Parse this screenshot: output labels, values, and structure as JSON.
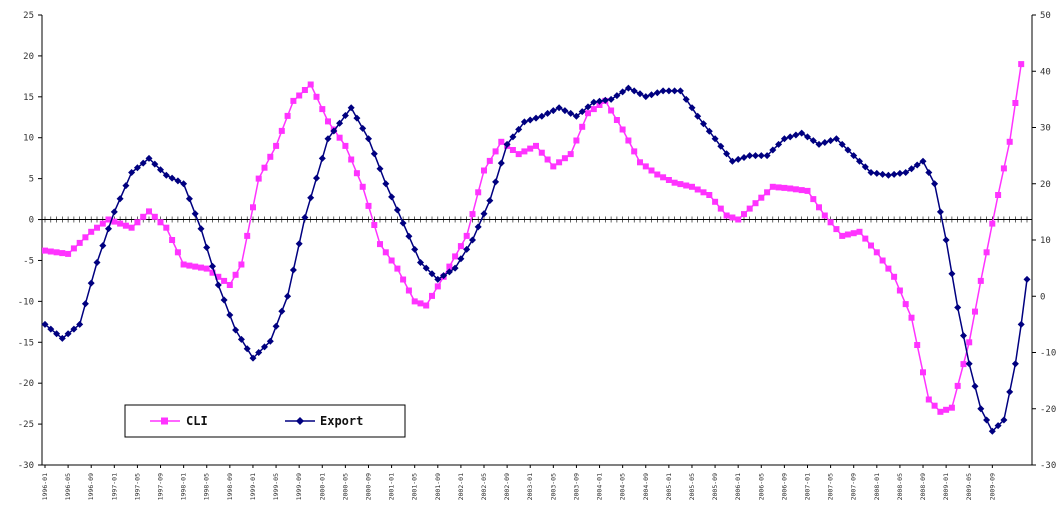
{
  "chart_data": {
    "type": "line",
    "title": "",
    "xlabel": "",
    "ylabel": "",
    "legend_position": "bottom-left",
    "grid": false,
    "zero_line": true,
    "x_tick_labels": [
      "1996-01",
      "1996-05",
      "1996-09",
      "1997-01",
      "1997-05",
      "1997-09",
      "1998-01",
      "1998-05",
      "1998-09",
      "1999-01",
      "1999-05",
      "1999-09",
      "2000-01",
      "2000-05",
      "2000-09",
      "2001-01",
      "2001-05",
      "2001-09",
      "2002-01",
      "2002-05",
      "2002-09",
      "2003-01",
      "2003-05",
      "2003-09",
      "2004-01",
      "2004-05",
      "2004-09",
      "2005-01",
      "2005-05",
      "2005-09",
      "2006-01",
      "2006-05",
      "2006-09",
      "2007-01",
      "2007-05",
      "2007-09",
      "2008-01",
      "2008-05",
      "2008-09",
      "2009-01",
      "2009-05",
      "2009-09"
    ],
    "y_left": {
      "min": -30,
      "max": 25,
      "ticks": [
        25,
        20,
        15,
        10,
        5,
        0,
        -5,
        -10,
        -15,
        -20,
        -25,
        -30
      ]
    },
    "y_right": {
      "min": -30,
      "max": 50,
      "ticks": [
        50,
        40,
        30,
        20,
        10,
        0,
        -10,
        -20,
        -30
      ]
    },
    "series": [
      {
        "name": "CLI",
        "axis": "left",
        "color": "#ff33ff",
        "marker": "square",
        "anchors": [
          [
            "1996-01",
            -3.8
          ],
          [
            "1996-05",
            -4.2
          ],
          [
            "1996-09",
            -1.5
          ],
          [
            "1996-12",
            0.0
          ],
          [
            "1997-04",
            -1.0
          ],
          [
            "1997-07",
            1.0
          ],
          [
            "1997-10",
            -1.0
          ],
          [
            "1998-01",
            -5.5
          ],
          [
            "1998-05",
            -6.0
          ],
          [
            "1998-09",
            -8.0
          ],
          [
            "1998-11",
            -5.5
          ],
          [
            "1999-02",
            5.0
          ],
          [
            "1999-05",
            9.0
          ],
          [
            "1999-08",
            14.5
          ],
          [
            "1999-11",
            16.5
          ],
          [
            "2000-02",
            12.0
          ],
          [
            "2000-05",
            9.0
          ],
          [
            "2000-08",
            4.0
          ],
          [
            "2000-11",
            -3.0
          ],
          [
            "2001-02",
            -6.0
          ],
          [
            "2001-05",
            -10.0
          ],
          [
            "2001-07",
            -10.5
          ],
          [
            "2001-10",
            -7.0
          ],
          [
            "2002-02",
            -2.0
          ],
          [
            "2002-05",
            6.0
          ],
          [
            "2002-08",
            9.5
          ],
          [
            "2002-11",
            8.0
          ],
          [
            "2003-02",
            9.0
          ],
          [
            "2003-05",
            6.5
          ],
          [
            "2003-08",
            8.0
          ],
          [
            "2003-11",
            13.0
          ],
          [
            "2004-02",
            14.5
          ],
          [
            "2004-05",
            11.0
          ],
          [
            "2004-08",
            7.0
          ],
          [
            "2004-11",
            5.5
          ],
          [
            "2005-02",
            4.5
          ],
          [
            "2005-05",
            4.0
          ],
          [
            "2005-08",
            3.0
          ],
          [
            "2005-11",
            0.5
          ],
          [
            "2006-01",
            0.0
          ],
          [
            "2006-04",
            2.0
          ],
          [
            "2006-07",
            4.0
          ],
          [
            "2006-10",
            3.8
          ],
          [
            "2007-01",
            3.5
          ],
          [
            "2007-04",
            0.5
          ],
          [
            "2007-07",
            -2.0
          ],
          [
            "2007-10",
            -1.5
          ],
          [
            "2008-01",
            -4.0
          ],
          [
            "2008-04",
            -7.0
          ],
          [
            "2008-07",
            -12.0
          ],
          [
            "2008-10",
            -22.0
          ],
          [
            "2008-12",
            -23.5
          ],
          [
            "2009-02",
            -23.0
          ],
          [
            "2009-05",
            -15.0
          ],
          [
            "2009-07",
            -7.5
          ],
          [
            "2009-10",
            3.0
          ],
          [
            "2009-12",
            9.5
          ],
          [
            "2010-02",
            19.0
          ]
        ]
      },
      {
        "name": "Export",
        "axis": "right",
        "color": "#000080",
        "marker": "diamond",
        "anchors": [
          [
            "1996-01",
            -5.0
          ],
          [
            "1996-04",
            -7.5
          ],
          [
            "1996-07",
            -5.0
          ],
          [
            "1996-10",
            6.0
          ],
          [
            "1997-01",
            15.0
          ],
          [
            "1997-04",
            22.0
          ],
          [
            "1997-07",
            24.5
          ],
          [
            "1997-10",
            21.5
          ],
          [
            "1998-01",
            20.0
          ],
          [
            "1998-04",
            12.0
          ],
          [
            "1998-07",
            2.0
          ],
          [
            "1998-10",
            -6.0
          ],
          [
            "1999-01",
            -11.0
          ],
          [
            "1999-04",
            -8.0
          ],
          [
            "1999-07",
            0.0
          ],
          [
            "1999-10",
            14.0
          ],
          [
            "2000-02",
            28.0
          ],
          [
            "2000-06",
            33.5
          ],
          [
            "2000-09",
            28.0
          ],
          [
            "2000-12",
            20.0
          ],
          [
            "2001-03",
            13.0
          ],
          [
            "2001-06",
            6.0
          ],
          [
            "2001-09",
            3.0
          ],
          [
            "2001-12",
            5.0
          ],
          [
            "2002-03",
            10.0
          ],
          [
            "2002-06",
            17.0
          ],
          [
            "2002-09",
            27.0
          ],
          [
            "2002-12",
            31.0
          ],
          [
            "2003-03",
            32.0
          ],
          [
            "2003-06",
            33.5
          ],
          [
            "2003-09",
            32.0
          ],
          [
            "2003-12",
            34.5
          ],
          [
            "2004-03",
            35.0
          ],
          [
            "2004-06",
            37.0
          ],
          [
            "2004-09",
            35.5
          ],
          [
            "2004-12",
            36.5
          ],
          [
            "2005-03",
            36.5
          ],
          [
            "2005-06",
            32.0
          ],
          [
            "2005-09",
            28.0
          ],
          [
            "2005-12",
            24.0
          ],
          [
            "2006-03",
            25.0
          ],
          [
            "2006-06",
            25.0
          ],
          [
            "2006-09",
            28.0
          ],
          [
            "2006-12",
            29.0
          ],
          [
            "2007-03",
            27.0
          ],
          [
            "2007-06",
            28.0
          ],
          [
            "2007-09",
            25.0
          ],
          [
            "2007-12",
            22.0
          ],
          [
            "2008-03",
            21.5
          ],
          [
            "2008-06",
            22.0
          ],
          [
            "2008-09",
            24.0
          ],
          [
            "2008-11",
            20.0
          ],
          [
            "2009-01",
            10.0
          ],
          [
            "2009-03",
            -2.0
          ],
          [
            "2009-05",
            -12.0
          ],
          [
            "2009-07",
            -20.0
          ],
          [
            "2009-09",
            -24.0
          ],
          [
            "2009-11",
            -22.0
          ],
          [
            "2010-01",
            -12.0
          ],
          [
            "2010-02",
            -5.0
          ],
          [
            "2010-03",
            3.0
          ]
        ]
      }
    ]
  }
}
